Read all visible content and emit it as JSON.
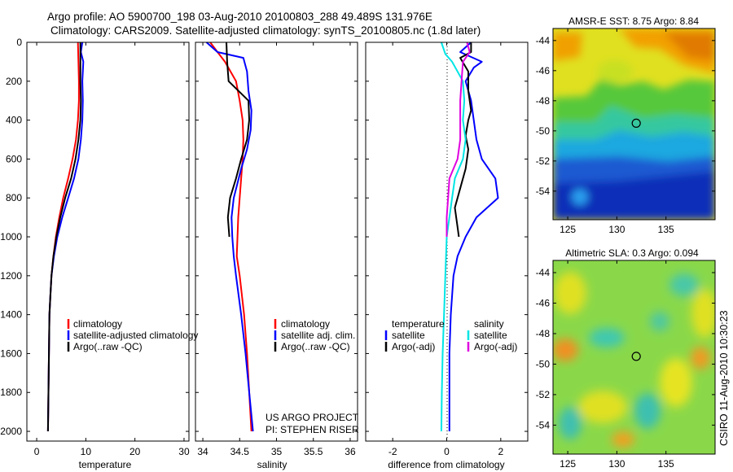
{
  "header": {
    "line1": "Argo profile: AO 5900700_198 03-Aug-2010 20100803_288 49.489S 131.976E",
    "line2": "Climatology: CARS2009. Satellite-adjusted climatology: synTS_20100805.nc (1.8d later)"
  },
  "side_label": "CSIRO 11-Aug-2010 10:30:23",
  "credits": {
    "line1": "US ARGO PROJECT",
    "line2": "PI: STEPHEN RISER"
  },
  "colors": {
    "climatology": "#ff0000",
    "satellite": "#0000ff",
    "argo": "#000000",
    "sat_salinity": "#00e5e5",
    "argo_salinity": "#e000e0"
  },
  "chart_data": [
    {
      "type": "line",
      "xlabel": "temperature",
      "xlim": [
        -2,
        31
      ],
      "ylim": [
        0,
        2050
      ],
      "xticks": [
        0,
        10,
        20,
        30
      ],
      "yticks": [
        0,
        200,
        400,
        600,
        800,
        1000,
        1200,
        1400,
        1600,
        1800,
        2000
      ],
      "legend": [
        "climatology",
        "satellite-adjusted climatology",
        "Argo(..raw -QC)"
      ],
      "series": [
        {
          "name": "climatology",
          "color": "#ff0000",
          "points": [
            [
              8.4,
              0
            ],
            [
              8.5,
              100
            ],
            [
              8.6,
              200
            ],
            [
              8.6,
              300
            ],
            [
              8.4,
              400
            ],
            [
              8.0,
              500
            ],
            [
              7.3,
              600
            ],
            [
              6.4,
              700
            ],
            [
              5.4,
              800
            ],
            [
              4.6,
              900
            ],
            [
              3.9,
              1000
            ],
            [
              3.4,
              1100
            ],
            [
              3.0,
              1200
            ],
            [
              2.8,
              1300
            ],
            [
              2.6,
              1400
            ],
            [
              2.5,
              1600
            ],
            [
              2.4,
              1800
            ],
            [
              2.3,
              2000
            ]
          ]
        },
        {
          "name": "satellite-adjusted climatology",
          "color": "#0000ff",
          "points": [
            [
              9.3,
              0
            ],
            [
              9.0,
              50
            ],
            [
              9.5,
              100
            ],
            [
              9.3,
              200
            ],
            [
              9.4,
              300
            ],
            [
              9.3,
              400
            ],
            [
              9.0,
              500
            ],
            [
              8.5,
              600
            ],
            [
              7.6,
              700
            ],
            [
              6.4,
              800
            ],
            [
              5.2,
              900
            ],
            [
              4.2,
              1000
            ],
            [
              3.5,
              1100
            ],
            [
              3.0,
              1200
            ],
            [
              2.8,
              1300
            ],
            [
              2.6,
              1400
            ],
            [
              2.5,
              1600
            ],
            [
              2.4,
              1800
            ],
            [
              2.3,
              2000
            ]
          ]
        },
        {
          "name": "Argo(..raw -QC)",
          "color": "#000000",
          "points": [
            [
              8.9,
              0
            ],
            [
              8.9,
              100
            ],
            [
              8.9,
              200
            ],
            [
              9.0,
              300
            ],
            [
              8.9,
              400
            ],
            [
              8.5,
              500
            ],
            [
              7.9,
              600
            ],
            [
              7.0,
              700
            ],
            [
              5.8,
              800
            ],
            [
              4.8,
              900
            ],
            [
              4.0,
              1000
            ],
            [
              3.4,
              1100
            ],
            [
              3.0,
              1200
            ],
            [
              2.8,
              1300
            ],
            [
              2.6,
              1400
            ],
            [
              2.5,
              1600
            ],
            [
              2.4,
              1800
            ],
            [
              2.3,
              2000
            ]
          ]
        }
      ]
    },
    {
      "type": "line",
      "xlabel": "salinity",
      "xlim": [
        33.9,
        36.1
      ],
      "ylim": [
        0,
        2050
      ],
      "xticks": [
        34,
        34.5,
        35,
        35.5,
        36
      ],
      "legend": [
        "climatology",
        "satellite adj. clim.",
        "Argo(..raw -QC)"
      ],
      "series": [
        {
          "name": "climatology",
          "color": "#ff0000",
          "points": [
            [
              34.1,
              0
            ],
            [
              34.2,
              50
            ],
            [
              34.3,
              100
            ],
            [
              34.45,
              200
            ],
            [
              34.5,
              300
            ],
            [
              34.54,
              400
            ],
            [
              34.55,
              500
            ],
            [
              34.54,
              600
            ],
            [
              34.52,
              700
            ],
            [
              34.5,
              800
            ],
            [
              34.48,
              900
            ],
            [
              34.47,
              1000
            ],
            [
              34.46,
              1100
            ],
            [
              34.5,
              1200
            ],
            [
              34.56,
              1400
            ],
            [
              34.6,
              1600
            ],
            [
              34.63,
              1800
            ],
            [
              34.66,
              2000
            ]
          ]
        },
        {
          "name": "satellite adj. clim.",
          "color": "#0000ff",
          "points": [
            [
              34.05,
              0
            ],
            [
              34.2,
              50
            ],
            [
              34.55,
              80
            ],
            [
              34.6,
              150
            ],
            [
              34.62,
              250
            ],
            [
              34.66,
              350
            ],
            [
              34.65,
              450
            ],
            [
              34.6,
              550
            ],
            [
              34.52,
              650
            ],
            [
              34.42,
              800
            ],
            [
              34.39,
              900
            ],
            [
              34.4,
              1000
            ],
            [
              34.42,
              1100
            ],
            [
              34.45,
              1200
            ],
            [
              34.52,
              1400
            ],
            [
              34.58,
              1600
            ],
            [
              34.63,
              1800
            ],
            [
              34.68,
              2000
            ]
          ]
        },
        {
          "name": "Argo(..raw -QC)",
          "color": "#000000",
          "points": [
            [
              34.32,
              0
            ],
            [
              34.33,
              100
            ],
            [
              34.35,
              200
            ],
            [
              34.62,
              300
            ],
            [
              34.63,
              400
            ],
            [
              34.6,
              500
            ],
            [
              34.52,
              600
            ],
            [
              34.45,
              700
            ],
            [
              34.37,
              800
            ],
            [
              34.34,
              900
            ],
            [
              34.36,
              1000
            ]
          ]
        }
      ]
    },
    {
      "type": "line",
      "xlabel": "difference from climatology",
      "xlim": [
        -3,
        3
      ],
      "ylim": [
        0,
        2050
      ],
      "xticks": [
        -2,
        0,
        2
      ],
      "legend_left_title": "temperature",
      "legend_right_title": "salinity",
      "legend_left": [
        "satellite",
        "Argo(-adj)"
      ],
      "legend_right": [
        "satellite",
        "Argo(-adj)"
      ],
      "series": [
        {
          "name": "temperature satellite",
          "color": "#0000ff",
          "points": [
            [
              0.9,
              0
            ],
            [
              0.5,
              50
            ],
            [
              1.3,
              100
            ],
            [
              1.0,
              130
            ],
            [
              0.7,
              200
            ],
            [
              0.9,
              300
            ],
            [
              1.0,
              400
            ],
            [
              1.1,
              500
            ],
            [
              1.3,
              600
            ],
            [
              1.8,
              700
            ],
            [
              1.9,
              800
            ],
            [
              1.1,
              900
            ],
            [
              0.7,
              1000
            ],
            [
              0.4,
              1100
            ],
            [
              0.25,
              1200
            ],
            [
              0.15,
              1400
            ],
            [
              0.1,
              1600
            ],
            [
              0.1,
              1800
            ],
            [
              0.1,
              2000
            ]
          ]
        },
        {
          "name": "temperature Argo(-adj)",
          "color": "#000000",
          "points": [
            [
              0.9,
              0
            ],
            [
              0.9,
              50
            ],
            [
              0.5,
              80
            ],
            [
              0.8,
              150
            ],
            [
              0.8,
              250
            ],
            [
              0.9,
              350
            ],
            [
              0.8,
              400
            ],
            [
              0.7,
              480
            ],
            [
              0.8,
              550
            ],
            [
              0.7,
              650
            ],
            [
              0.5,
              750
            ],
            [
              0.3,
              850
            ],
            [
              0.4,
              950
            ],
            [
              0.45,
              1000
            ]
          ]
        },
        {
          "name": "salinity satellite",
          "color": "#00e5e5",
          "points": [
            [
              -0.2,
              0
            ],
            [
              -0.05,
              60
            ],
            [
              0.2,
              100
            ],
            [
              0.6,
              200
            ],
            [
              0.65,
              300
            ],
            [
              0.6,
              400
            ],
            [
              0.7,
              500
            ],
            [
              0.6,
              600
            ],
            [
              0.3,
              700
            ],
            [
              0.2,
              800
            ],
            [
              0.1,
              900
            ],
            [
              0,
              1000
            ],
            [
              -0.05,
              1200
            ],
            [
              -0.1,
              1400
            ],
            [
              -0.15,
              1600
            ],
            [
              -0.18,
              1800
            ],
            [
              -0.2,
              2000
            ]
          ]
        },
        {
          "name": "salinity Argo(-adj)",
          "color": "#e000e0",
          "points": [
            [
              0.75,
              0
            ],
            [
              0.85,
              50
            ],
            [
              0.6,
              100
            ],
            [
              0.55,
              200
            ],
            [
              0.5,
              300
            ],
            [
              0.5,
              400
            ],
            [
              0.5,
              500
            ],
            [
              0.4,
              600
            ],
            [
              0.1,
              700
            ],
            [
              0.05,
              800
            ],
            [
              0.0,
              900
            ],
            [
              0.0,
              1000
            ]
          ]
        }
      ]
    },
    {
      "type": "heatmap",
      "title": "AMSR-E SST: 8.75 Argo: 8.84",
      "xlim": [
        123.5,
        140
      ],
      "ylim": [
        -55.9,
        -43.2
      ],
      "xticks": [
        125,
        130,
        135
      ],
      "yticks": [
        -44,
        -46,
        -48,
        -50,
        -52,
        -54
      ],
      "marker": {
        "lon": 131.976,
        "lat": -49.489
      }
    },
    {
      "type": "heatmap",
      "title": "Altimetric SLA: 0.3 Argo: 0.094",
      "xlim": [
        123.5,
        140
      ],
      "ylim": [
        -55.9,
        -43.2
      ],
      "xticks": [
        125,
        130,
        135
      ],
      "yticks": [
        -44,
        -46,
        -48,
        -50,
        -52,
        -54
      ],
      "marker": {
        "lon": 131.976,
        "lat": -49.489
      }
    }
  ]
}
